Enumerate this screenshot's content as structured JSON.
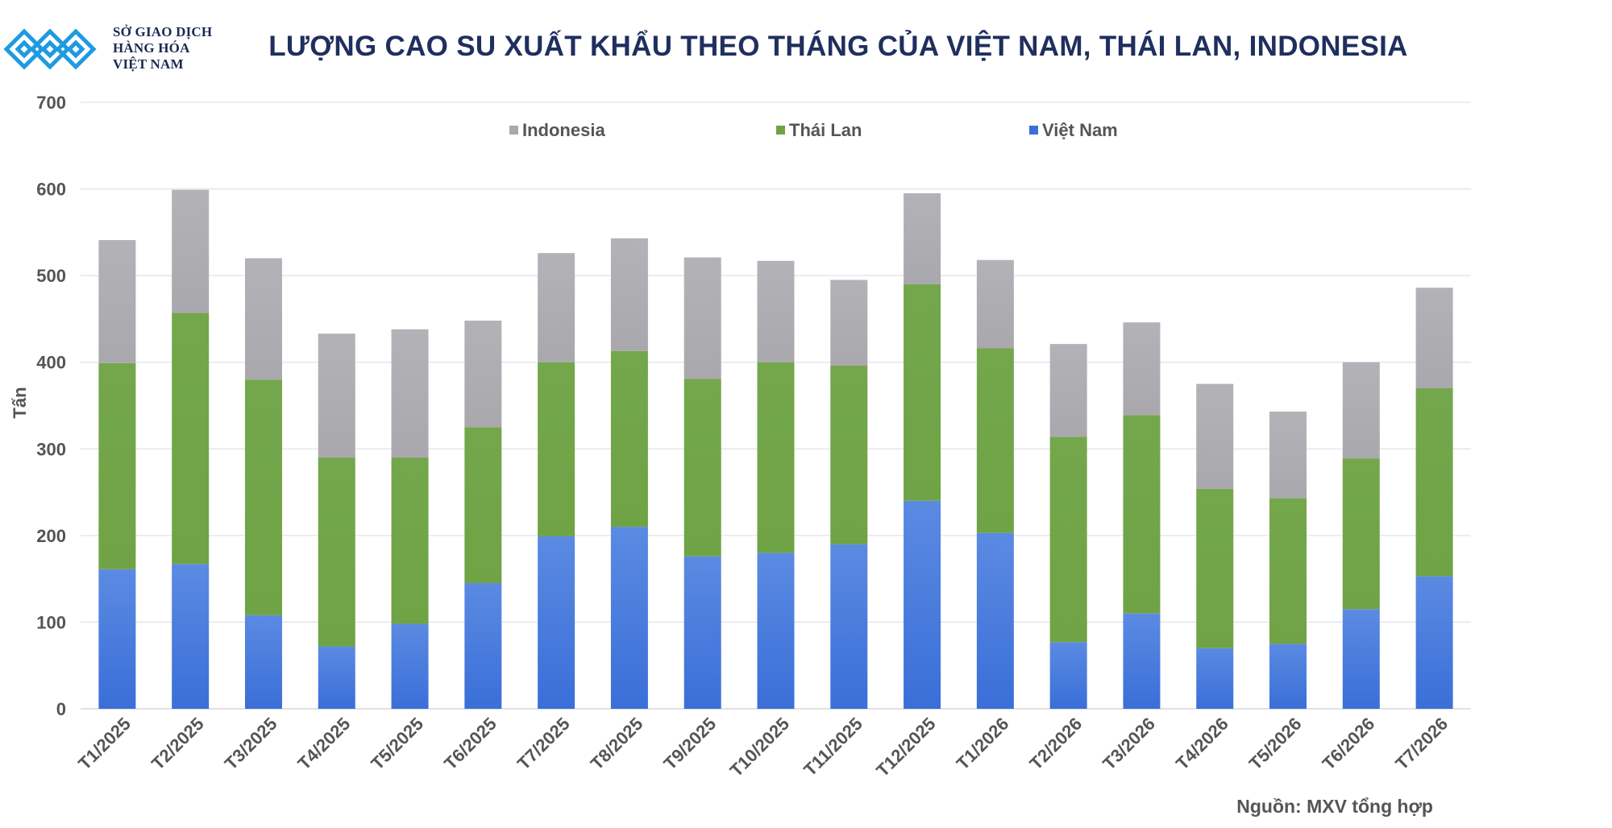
{
  "header": {
    "logo_lines": [
      "SỞ GIAO DỊCH",
      "HÀNG HÓA",
      "VIỆT NAM"
    ],
    "title": "LƯỢNG CAO SU XUẤT KHẨU THEO THÁNG CỦA VIỆT NAM, THÁI LAN, INDONESIA"
  },
  "footer": {
    "source": "Nguồn: MXV tổng hợp"
  },
  "colors": {
    "vietnam": "#3a6fd8",
    "thailand": "#6fa345",
    "indonesia": "#a9a8ad",
    "title": "#1f2f5e",
    "logo": "#1e9be0"
  },
  "chart_data": {
    "type": "bar",
    "stacked": true,
    "title": "LƯỢNG CAO SU XUẤT KHẨU THEO THÁNG CỦA VIỆT NAM, THÁI LAN, INDONESIA",
    "xlabel": "",
    "ylabel": "Tấn",
    "ylim": [
      0,
      700
    ],
    "yticks": [
      0,
      100,
      200,
      300,
      400,
      500,
      600,
      700
    ],
    "grid": true,
    "legend_position": "top-center",
    "categories": [
      "T1/2025",
      "T2/2025",
      "T3/2025",
      "T4/2025",
      "T5/2025",
      "T6/2025",
      "T7/2025",
      "T8/2025",
      "T9/2025",
      "T10/2025",
      "T11/2025",
      "T12/2025",
      "T1/2026",
      "T2/2026",
      "T3/2026",
      "T4/2026",
      "T5/2026",
      "T6/2026",
      "T7/2026"
    ],
    "series": [
      {
        "name": "Việt Nam",
        "color": "#3a6fd8",
        "values": [
          161,
          167,
          108,
          72,
          98,
          145,
          199,
          210,
          176,
          180,
          190,
          240,
          203,
          77,
          110,
          70,
          75,
          115,
          153
        ]
      },
      {
        "name": "Thái Lan",
        "color": "#6fa345",
        "values": [
          238,
          290,
          272,
          218,
          192,
          180,
          201,
          203,
          205,
          220,
          206,
          250,
          213,
          237,
          229,
          184,
          168,
          174,
          217
        ]
      },
      {
        "name": "Indonesia",
        "color": "#a9a8ad",
        "values": [
          142,
          142,
          140,
          143,
          148,
          123,
          126,
          130,
          140,
          117,
          99,
          105,
          102,
          107,
          107,
          121,
          100,
          111,
          116
        ]
      }
    ],
    "legend_order": [
      "Indonesia",
      "Thái Lan",
      "Việt Nam"
    ],
    "source": "Nguồn: MXV tổng hợp"
  }
}
